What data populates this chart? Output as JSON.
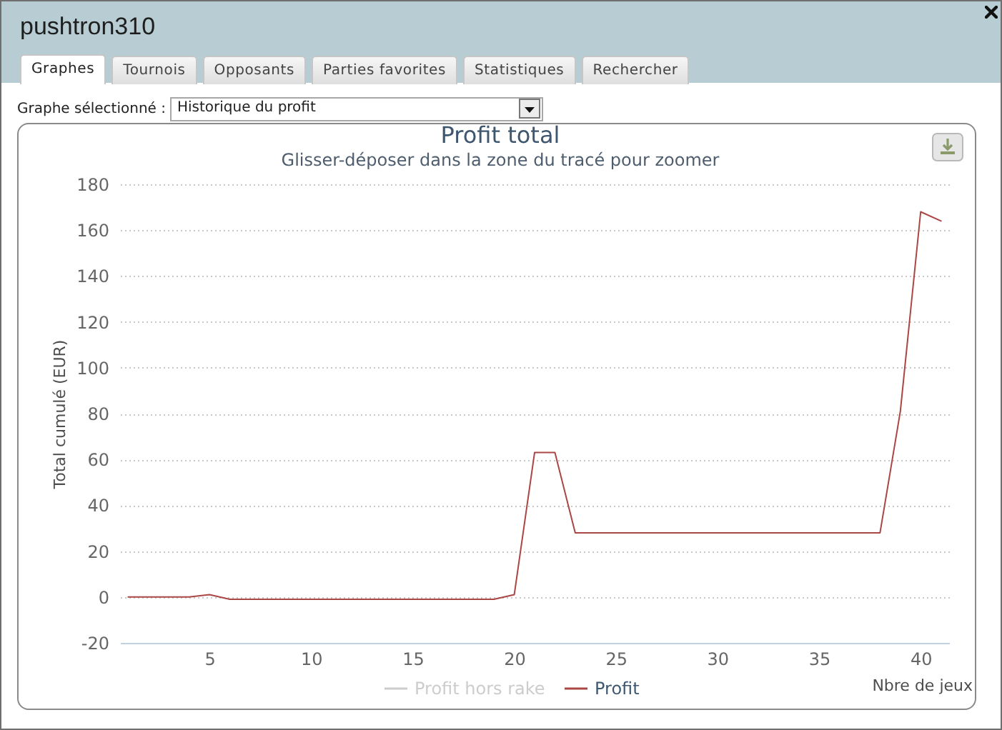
{
  "chart_data": {
    "type": "line",
    "title": "Profit total",
    "subtitle": "Glisser-déposer dans la zone du tracé pour zoomer",
    "xlabel": "Nbre de jeux",
    "ylabel": "Total cumulé (EUR)",
    "annotations": [
      "pushtron310",
      "Graphes",
      "Tournois",
      "Opposants",
      "Parties favorites",
      "Statistiques",
      "Rechercher",
      "Graphe sélectionné :",
      "Historique du profit"
    ],
    "x": [
      1,
      2,
      3,
      4,
      5,
      6,
      7,
      8,
      9,
      10,
      11,
      12,
      13,
      14,
      15,
      16,
      17,
      18,
      19,
      20,
      21,
      22,
      23,
      24,
      25,
      26,
      27,
      28,
      29,
      30,
      31,
      32,
      33,
      34,
      35,
      36,
      37,
      38,
      39,
      40,
      41
    ],
    "series": [
      {
        "name": "Profit hors rake",
        "color": "#cccccc",
        "values": [
          null,
          null,
          null,
          null,
          null,
          null,
          null,
          null,
          null,
          null,
          null,
          null,
          null,
          null,
          null,
          null,
          null,
          null,
          null,
          null,
          null,
          null,
          null,
          null,
          null,
          null,
          null,
          null,
          null,
          null,
          null,
          null,
          null,
          null,
          null,
          null,
          null,
          null,
          null,
          null,
          null
        ]
      },
      {
        "name": "Profit",
        "color": "#aa4643",
        "values": [
          0,
          0,
          0,
          0,
          1,
          -1,
          -1,
          -1,
          -1,
          -1,
          -1,
          -1,
          -1,
          -1,
          -1,
          -1,
          -1,
          -1,
          -1,
          1,
          63,
          63,
          28,
          28,
          28,
          28,
          28,
          28,
          28,
          28,
          28,
          28,
          28,
          28,
          28,
          28,
          28,
          28,
          81,
          168,
          164
        ]
      }
    ],
    "xlim": [
      0.6,
      41.4
    ],
    "xticks": [
      5,
      10,
      15,
      20,
      25,
      30,
      35,
      40
    ],
    "ylim": [
      -20,
      180
    ],
    "yticks": [
      -20,
      0,
      20,
      40,
      60,
      80,
      100,
      120,
      140,
      160,
      180
    ],
    "grid": "y",
    "legend": "bottom",
    "line_style": "solid"
  }
}
